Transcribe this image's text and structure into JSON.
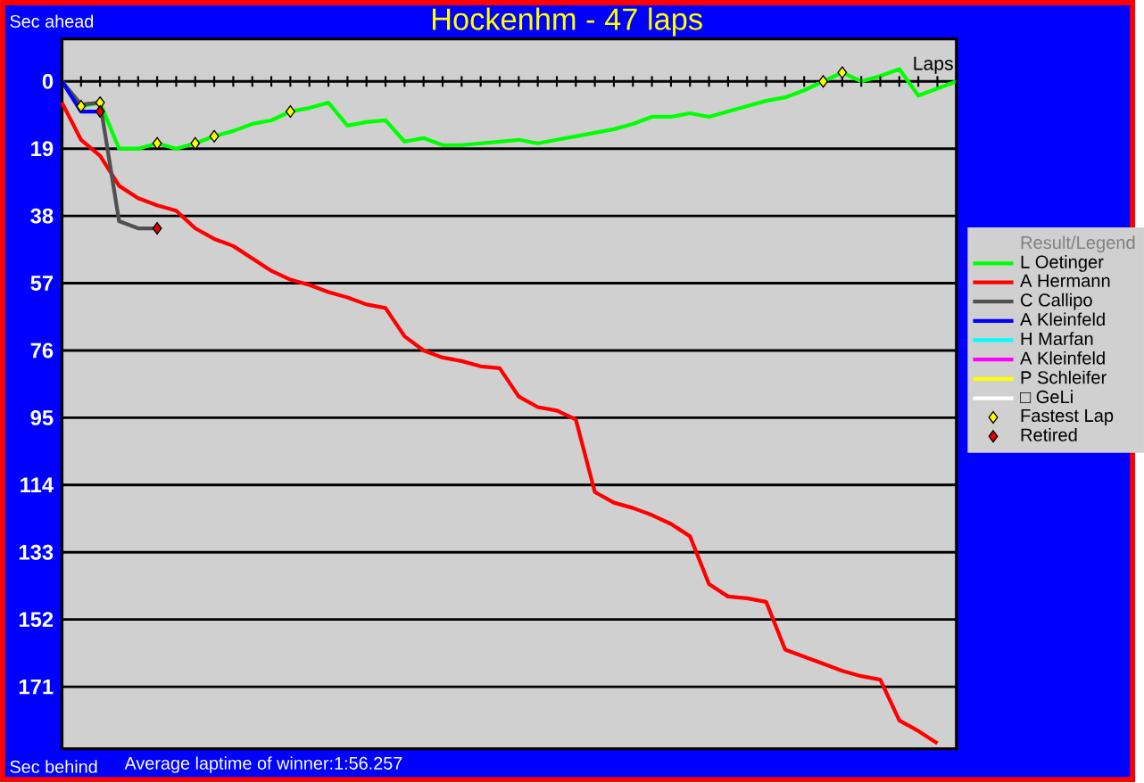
{
  "chart_data": {
    "type": "line",
    "title": "Hockenhm - 47 laps",
    "ylabel": "Sec ahead",
    "xlabel": "Laps",
    "legend_title": "Result/Legend",
    "annotations": [
      "Sec behind",
      "Average laptime of winner:1:56.257"
    ],
    "categories": [
      null,
      null,
      null,
      null,
      null,
      null,
      null,
      null,
      null,
      null,
      null,
      null,
      null,
      null,
      null,
      null,
      null,
      null,
      null,
      null,
      null,
      null,
      null,
      null,
      null,
      null,
      null,
      null,
      null,
      null,
      null,
      null,
      null,
      null,
      null,
      null,
      null,
      null,
      null,
      null,
      null,
      null,
      null,
      null,
      null,
      null,
      null,
      null
    ],
    "ylim": [
      188.5,
      -12
    ],
    "yticks": [
      0,
      19,
      38,
      57,
      76,
      95,
      114,
      133,
      152,
      171
    ],
    "grid": "y",
    "legend": "right",
    "tick_labels": "y",
    "series": [
      {
        "name": "L Oetinger",
        "color": "#00ff00",
        "type": "line",
        "values": [
          0,
          7,
          6,
          19,
          19,
          17.5,
          19,
          17.5,
          15.5,
          14,
          12,
          11,
          8.5,
          7.5,
          6,
          12.5,
          11.5,
          11,
          17,
          16,
          18,
          18,
          17.5,
          17,
          16.5,
          17.5,
          16.5,
          15.5,
          14.5,
          13.5,
          12,
          10,
          10,
          9,
          10,
          8.5,
          7,
          5.5,
          4.5,
          2.5,
          0,
          -2.5,
          0,
          -1.5,
          -3.5,
          4,
          2,
          0
        ]
      },
      {
        "name": "A Hermann",
        "color": "#ff0000",
        "type": "line",
        "values": [
          6,
          16.5,
          21,
          29.5,
          33,
          35,
          36.5,
          41.5,
          44.5,
          46.5,
          50,
          53.5,
          56,
          57.5,
          59.5,
          61,
          63,
          64,
          72,
          76,
          78,
          79,
          80.5,
          81,
          89,
          92,
          93,
          95.5,
          116,
          119,
          120.5,
          122.5,
          125,
          128.5,
          142,
          145.5,
          146,
          147,
          160.5,
          162.5,
          164.5,
          166.5,
          168,
          169,
          180.5,
          183.5,
          187,
          null
        ]
      },
      {
        "name": "C Callipo",
        "color": "#505050",
        "type": "line",
        "values": [
          0,
          6.5,
          6,
          39.5,
          41.5,
          41.5,
          null,
          null,
          null,
          null,
          null,
          null,
          null,
          null,
          null,
          null,
          null,
          null,
          null,
          null,
          null,
          null,
          null,
          null,
          null,
          null,
          null,
          null,
          null,
          null,
          null,
          null,
          null,
          null,
          null,
          null,
          null,
          null,
          null,
          null,
          null,
          null,
          null,
          null,
          null,
          null,
          null,
          null
        ]
      },
      {
        "name": "A Kleinfeld",
        "color": "#0000ff",
        "type": "line",
        "values": [
          0,
          8.5,
          8.5,
          null,
          null,
          null,
          null,
          null,
          null,
          null,
          null,
          null,
          null,
          null,
          null,
          null,
          null,
          null,
          null,
          null,
          null,
          null,
          null,
          null,
          null,
          null,
          null,
          null,
          null,
          null,
          null,
          null,
          null,
          null,
          null,
          null,
          null,
          null,
          null,
          null,
          null,
          null,
          null,
          null,
          null,
          null,
          null,
          null
        ]
      },
      {
        "name": "H Marfan",
        "color": "#00ffff",
        "type": "line",
        "values": [
          null,
          null,
          null,
          null,
          null,
          null,
          null,
          null,
          null,
          null,
          null,
          null,
          null,
          null,
          null,
          null,
          null,
          null,
          null,
          null,
          null,
          null,
          null,
          null,
          null,
          null,
          null,
          null,
          null,
          null,
          null,
          null,
          null,
          null,
          null,
          null,
          null,
          null,
          null,
          null,
          null,
          null,
          null,
          null,
          null,
          null,
          null,
          null
        ]
      },
      {
        "name": "A Kleinfeld",
        "color": "#ff00ff",
        "type": "line",
        "values": [
          null,
          null,
          null,
          null,
          null,
          null,
          null,
          null,
          null,
          null,
          null,
          null,
          null,
          null,
          null,
          null,
          null,
          null,
          null,
          null,
          null,
          null,
          null,
          null,
          null,
          null,
          null,
          null,
          null,
          null,
          null,
          null,
          null,
          null,
          null,
          null,
          null,
          null,
          null,
          null,
          null,
          null,
          null,
          null,
          null,
          null,
          null,
          null
        ]
      },
      {
        "name": "P Schleifer",
        "color": "#ffff00",
        "type": "line",
        "values": [
          null,
          null,
          null,
          null,
          null,
          null,
          null,
          null,
          null,
          null,
          null,
          null,
          null,
          null,
          null,
          null,
          null,
          null,
          null,
          null,
          null,
          null,
          null,
          null,
          null,
          null,
          null,
          null,
          null,
          null,
          null,
          null,
          null,
          null,
          null,
          null,
          null,
          null,
          null,
          null,
          null,
          null,
          null,
          null,
          null,
          null,
          null,
          null
        ]
      },
      {
        "name": "□ GeLi",
        "color": "#ffffff",
        "type": "line",
        "values": [
          null,
          null,
          null,
          null,
          null,
          null,
          null,
          null,
          null,
          null,
          null,
          null,
          null,
          null,
          null,
          null,
          null,
          null,
          null,
          null,
          null,
          null,
          null,
          null,
          null,
          null,
          null,
          null,
          null,
          null,
          null,
          null,
          null,
          null,
          null,
          null,
          null,
          null,
          null,
          null,
          null,
          null,
          null,
          null,
          null,
          null,
          null,
          null
        ]
      },
      {
        "name": "Fastest Lap",
        "color": "#ffff00",
        "type": "scatter",
        "marker": "diamond",
        "values": [
          null,
          7,
          6,
          null,
          null,
          17.5,
          null,
          17.5,
          15.5,
          null,
          null,
          null,
          8.5,
          null,
          null,
          null,
          null,
          null,
          null,
          null,
          null,
          null,
          null,
          null,
          null,
          null,
          null,
          null,
          null,
          null,
          null,
          null,
          null,
          null,
          null,
          null,
          null,
          null,
          null,
          null,
          0,
          -2.5,
          null,
          null,
          null,
          null,
          null,
          null
        ]
      },
      {
        "name": "Retired",
        "color": "#e00000",
        "type": "scatter",
        "marker": "diamond",
        "values": [
          null,
          null,
          8.5,
          null,
          null,
          41.5,
          null,
          null,
          null,
          null,
          null,
          null,
          null,
          null,
          null,
          null,
          null,
          null,
          null,
          null,
          null,
          null,
          null,
          null,
          null,
          null,
          null,
          null,
          null,
          null,
          null,
          null,
          null,
          null,
          null,
          null,
          null,
          null,
          null,
          null,
          null,
          null,
          null,
          null,
          null,
          null,
          null,
          null
        ]
      }
    ]
  }
}
